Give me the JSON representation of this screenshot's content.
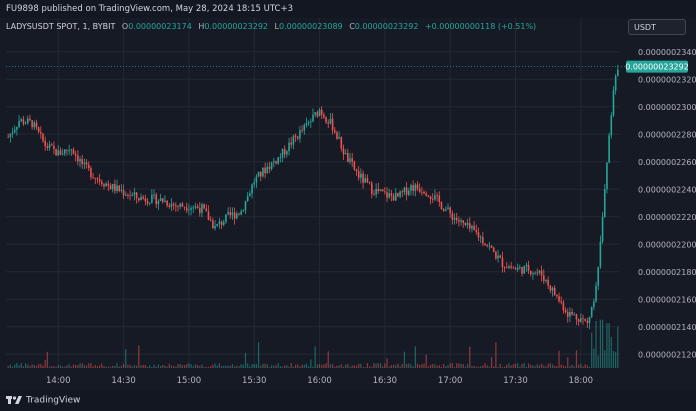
{
  "header": {
    "publish_line": "FU9898 published on TradingView.com, May 28, 2024 18:15 UTC+3"
  },
  "legend": {
    "symbol": "LADYSUSDT SPOT, 1, BYBIT",
    "o_label": "O",
    "o_value": "0.00000023174",
    "h_label": "H",
    "h_value": "0.00000023292",
    "l_label": "L",
    "l_value": "0.00000023089",
    "c_label": "C",
    "c_value": "0.00000023292",
    "change": "+0.00000000118 (+0.51%)"
  },
  "currency_badge": "USDT",
  "footer": {
    "brand": "TradingView"
  },
  "colors": {
    "up": "#26a69a",
    "down": "#ef5350",
    "grid": "#242833",
    "text": "#b2b5be",
    "bg": "#161a25"
  },
  "chart_data": {
    "type": "candlestick",
    "y_axis_labels": [
      "0.00000023400",
      "0.00000023200",
      "0.00000023000",
      "0.00000022800",
      "0.00000022600",
      "0.00000022400",
      "0.00000022200",
      "0.00000022000",
      "0.00000021800",
      "0.00000021600",
      "0.00000021400",
      "0.00000021200"
    ],
    "y_axis_values": [
      23400,
      23200,
      23000,
      22800,
      22600,
      22400,
      22200,
      22000,
      21800,
      21600,
      21400,
      21200
    ],
    "y_unit_scale": "1e-12",
    "ylim": [
      21100,
      23500
    ],
    "x_axis_labels": [
      "14:00",
      "14:30",
      "15:00",
      "15:30",
      "16:00",
      "16:30",
      "17:00",
      "17:30",
      "18:00"
    ],
    "x_axis_minutes": [
      0,
      30,
      60,
      90,
      120,
      150,
      180,
      210,
      240
    ],
    "xlim": [
      -24,
      258
    ],
    "current_price_label": "0.00000023292",
    "current_price_value": 23292,
    "price_path_points": [
      [
        -23,
        22780
      ],
      [
        -18,
        22900
      ],
      [
        -12,
        22880
      ],
      [
        -6,
        22720
      ],
      [
        0,
        22660
      ],
      [
        6,
        22700
      ],
      [
        12,
        22560
      ],
      [
        18,
        22480
      ],
      [
        24,
        22420
      ],
      [
        30,
        22380
      ],
      [
        36,
        22340
      ],
      [
        42,
        22330
      ],
      [
        48,
        22320
      ],
      [
        54,
        22280
      ],
      [
        60,
        22280
      ],
      [
        66,
        22260
      ],
      [
        72,
        22120
      ],
      [
        78,
        22200
      ],
      [
        84,
        22240
      ],
      [
        90,
        22460
      ],
      [
        96,
        22560
      ],
      [
        102,
        22640
      ],
      [
        108,
        22760
      ],
      [
        114,
        22860
      ],
      [
        120,
        22980
      ],
      [
        126,
        22860
      ],
      [
        132,
        22640
      ],
      [
        138,
        22500
      ],
      [
        144,
        22400
      ],
      [
        150,
        22360
      ],
      [
        156,
        22340
      ],
      [
        162,
        22420
      ],
      [
        168,
        22400
      ],
      [
        174,
        22320
      ],
      [
        180,
        22220
      ],
      [
        186,
        22140
      ],
      [
        192,
        22080
      ],
      [
        198,
        21980
      ],
      [
        204,
        21860
      ],
      [
        210,
        21820
      ],
      [
        216,
        21820
      ],
      [
        222,
        21780
      ],
      [
        228,
        21640
      ],
      [
        234,
        21500
      ],
      [
        240,
        21460
      ],
      [
        243,
        21420
      ],
      [
        246,
        21600
      ],
      [
        249,
        22000
      ],
      [
        252,
        22600
      ],
      [
        255,
        23100
      ],
      [
        257,
        23292
      ]
    ]
  }
}
